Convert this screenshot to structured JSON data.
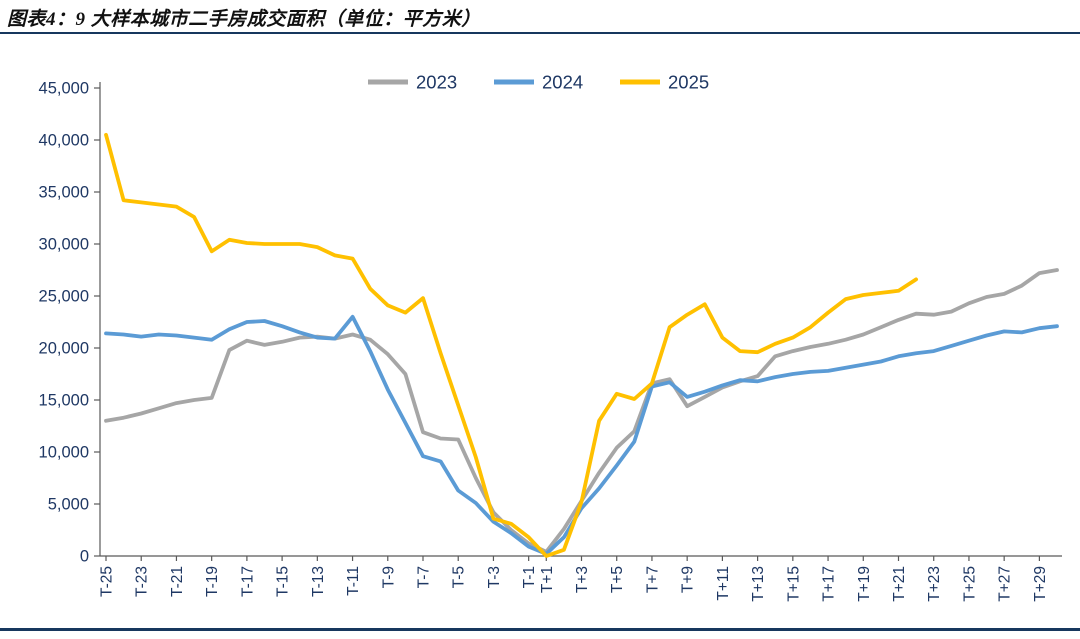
{
  "header": {
    "title": "图表4：9 大样本城市二手房成交面积（单位：平方米）"
  },
  "colors": {
    "accent_rule": "#17375E",
    "axis_text": "#1F3864",
    "axis_line": "#595959",
    "series_2023": "#A6A6A6",
    "series_2024": "#5B9BD5",
    "series_2025": "#FFC000"
  },
  "chart_data": {
    "type": "line",
    "title": "9大样本城市二手房成交面积",
    "unit": "平方米",
    "legend_position": "top-center",
    "grid": false,
    "ylim": [
      0,
      45000
    ],
    "ytick_step": 5000,
    "ytick_labels": [
      "0",
      "5,000",
      "10,000",
      "15,000",
      "20,000",
      "25,000",
      "30,000",
      "35,000",
      "40,000",
      "45,000"
    ],
    "x": [
      "T-25",
      "T-24",
      "T-23",
      "T-22",
      "T-21",
      "T-20",
      "T-19",
      "T-18",
      "T-17",
      "T-16",
      "T-15",
      "T-14",
      "T-13",
      "T-12",
      "T-11",
      "T-10",
      "T-9",
      "T-8",
      "T-7",
      "T-6",
      "T-5",
      "T-4",
      "T-3",
      "T-2",
      "T-1",
      "T+1",
      "T+2",
      "T+3",
      "T+4",
      "T+5",
      "T+6",
      "T+7",
      "T+8",
      "T+9",
      "T+10",
      "T+11",
      "T+12",
      "T+13",
      "T+14",
      "T+15",
      "T+16",
      "T+17",
      "T+18",
      "T+19",
      "T+20",
      "T+21",
      "T+22",
      "T+23",
      "T+24",
      "T+25",
      "T+26",
      "T+27",
      "T+28",
      "T+29",
      "T+30"
    ],
    "xtick_labels": [
      "T-25",
      "T-23",
      "T-21",
      "T-19",
      "T-17",
      "T-15",
      "T-13",
      "T-11",
      "T-9",
      "T-7",
      "T-5",
      "T-3",
      "T-1",
      "T+1",
      "T+3",
      "T+5",
      "T+7",
      "T+9",
      "T+11",
      "T+13",
      "T+15",
      "T+17",
      "T+19",
      "T+21",
      "T+23",
      "T+25",
      "T+27",
      "T+29"
    ],
    "series": [
      {
        "name": "2023",
        "color": "#A6A6A6",
        "values": [
          13000,
          13300,
          13700,
          14200,
          14700,
          15000,
          15200,
          19800,
          20700,
          20300,
          20600,
          21000,
          21100,
          20900,
          21300,
          20800,
          19400,
          17500,
          11900,
          11300,
          11200,
          7500,
          4200,
          2500,
          1200,
          400,
          2600,
          5300,
          8000,
          10400,
          12000,
          16600,
          17000,
          14400,
          15300,
          16200,
          16800,
          17300,
          19200,
          19700,
          20100,
          20400,
          20800,
          21300,
          22000,
          22700,
          23300,
          23200,
          23500,
          24300,
          24900,
          25200,
          26000,
          27200,
          27500
        ]
      },
      {
        "name": "2024",
        "color": "#5B9BD5",
        "values": [
          21400,
          21300,
          21100,
          21300,
          21200,
          21000,
          20800,
          21800,
          22500,
          22600,
          22100,
          21500,
          21000,
          20900,
          23000,
          19700,
          16000,
          12800,
          9600,
          9100,
          6300,
          5100,
          3300,
          2200,
          900,
          200,
          1800,
          4600,
          6500,
          8700,
          11000,
          16300,
          16700,
          15300,
          15800,
          16400,
          16900,
          16800,
          17200,
          17500,
          17700,
          17800,
          18100,
          18400,
          18700,
          19200,
          19500,
          19700,
          20200,
          20700,
          21200,
          21600,
          21500,
          21900,
          22100
        ]
      },
      {
        "name": "2025",
        "color": "#FFC000",
        "values": [
          40500,
          34200,
          34000,
          33800,
          33600,
          32600,
          29300,
          30400,
          30100,
          30000,
          30000,
          30000,
          29700,
          28900,
          28600,
          25700,
          24100,
          23400,
          24800,
          19500,
          14500,
          9500,
          3600,
          3100,
          1800,
          0,
          600,
          5200,
          13000,
          15600,
          15100,
          16600,
          22000,
          23200,
          24200,
          21000,
          19700,
          19600,
          20400,
          21000,
          22000,
          23400,
          24700,
          25100,
          25300,
          25500,
          26600,
          null,
          null,
          null,
          null,
          null,
          null,
          null,
          null
        ]
      }
    ]
  }
}
